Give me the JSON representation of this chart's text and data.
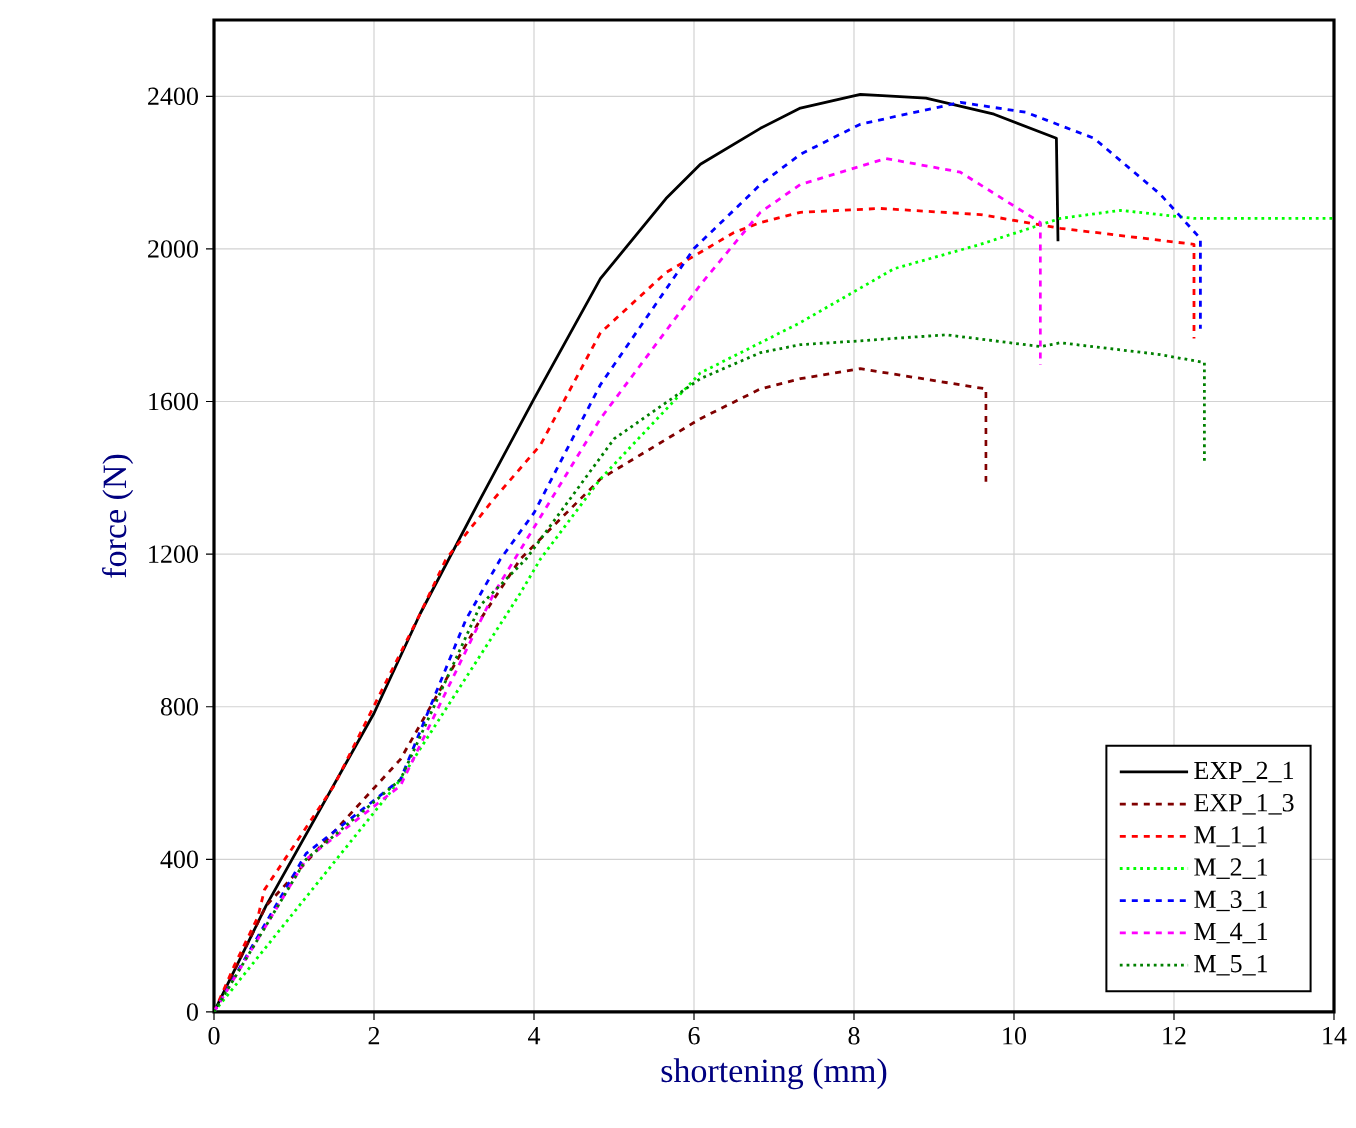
{
  "chart_data": {
    "type": "line",
    "xlabel": "shortening (mm)",
    "ylabel": "force (N)",
    "xlim": [
      0,
      14
    ],
    "ylim": [
      0,
      2600
    ],
    "xticks": [
      0,
      2,
      4,
      6,
      8,
      10,
      12,
      14
    ],
    "yticks": [
      0,
      400,
      800,
      1200,
      1600,
      2000,
      2400
    ],
    "grid": true,
    "legend": "bottom right",
    "marker": "none",
    "series": [
      {
        "name": "EXP_2_1",
        "color": "#000000",
        "line_style": "solid",
        "x": [
          0,
          0.65,
          2.0,
          2.58,
          3.33,
          4.0,
          4.83,
          5.65,
          6.08,
          6.83,
          7.33,
          8.08,
          8.9,
          9.75,
          10.53,
          10.55
        ],
        "values": [
          0,
          278,
          783,
          1045,
          1345,
          1607,
          1922,
          2132,
          2222,
          2316,
          2369,
          2405,
          2395,
          2353,
          2290,
          2020
        ]
      },
      {
        "name": "EXP_1_3",
        "color": "#800000",
        "line_style": "dashed",
        "x": [
          0,
          0.65,
          2.33,
          3.33,
          3.83,
          4.83,
          6.08,
          6.83,
          7.33,
          8.08,
          9.65,
          9.65
        ],
        "values": [
          0,
          278,
          662,
          1029,
          1187,
          1397,
          1555,
          1633,
          1660,
          1686,
          1633,
          1390
        ]
      },
      {
        "name": "M_1_1",
        "color": "#ff0000",
        "line_style": "dashed",
        "x": [
          0,
          0.25,
          0.55,
          0.63,
          1.5,
          2.58,
          2.9,
          3.5,
          4.08,
          4.83,
          5.65,
          6.5,
          6.83,
          7.33,
          8.33,
          9.58,
          10.58,
          12.25,
          12.25
        ],
        "values": [
          0,
          120,
          250,
          320,
          593,
          1045,
          1187,
          1345,
          1486,
          1780,
          1938,
          2043,
          2069,
          2096,
          2106,
          2090,
          2054,
          2012,
          1765
        ]
      },
      {
        "name": "M_2_1",
        "color": "#00ff00",
        "line_style": "dotted",
        "x": [
          0,
          2.33,
          3.83,
          4.08,
          4.83,
          6.08,
          6.83,
          7.33,
          8.5,
          9.58,
          10.58,
          11.33,
          12.25,
          14
        ],
        "values": [
          0,
          609,
          1098,
          1187,
          1397,
          1675,
          1754,
          1807,
          1948,
          2012,
          2080,
          2101,
          2080,
          2080
        ]
      },
      {
        "name": "M_3_1",
        "color": "#0000ff",
        "line_style": "dashed",
        "x": [
          0,
          1.15,
          2.33,
          3.15,
          3.58,
          4.0,
          4.83,
          6.0,
          6.65,
          6.83,
          7.33,
          8.08,
          9.33,
          10.15,
          11.0,
          11.83,
          12.33,
          12.33
        ],
        "values": [
          0,
          415,
          609,
          1029,
          1187,
          1308,
          1644,
          2001,
          2132,
          2169,
          2248,
          2327,
          2384,
          2358,
          2290,
          2143,
          2027,
          1791
        ]
      },
      {
        "name": "M_4_1",
        "color": "#ff00ff",
        "line_style": "dashed",
        "x": [
          0,
          1.15,
          2.33,
          3.5,
          4.83,
          6.08,
          6.83,
          7.33,
          8.4,
          9.33,
          10.33,
          10.33
        ],
        "values": [
          0,
          400,
          593,
          1098,
          1555,
          1906,
          2096,
          2169,
          2237,
          2201,
          2069,
          1696
        ]
      },
      {
        "name": "M_5_1",
        "color": "#008000",
        "line_style": "dotted",
        "x": [
          0,
          1.15,
          2.33,
          3.33,
          3.9,
          5.0,
          6.08,
          6.83,
          7.33,
          8.08,
          9.15,
          10.33,
          10.58,
          11.83,
          12.38,
          12.38
        ],
        "values": [
          0,
          400,
          609,
          1066,
          1187,
          1502,
          1660,
          1728,
          1749,
          1759,
          1775,
          1744,
          1754,
          1723,
          1702,
          1439
        ]
      }
    ]
  }
}
